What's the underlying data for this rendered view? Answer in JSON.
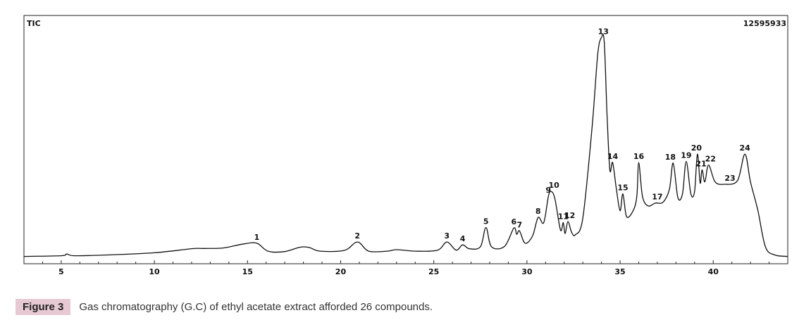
{
  "chart_data": {
    "type": "line",
    "top_left_label": "TIC",
    "top_right_label": "12595933",
    "xlim": [
      3,
      44
    ],
    "ylim": [
      0,
      100
    ],
    "x_ticks": [
      5,
      10,
      15,
      20,
      25,
      30,
      35,
      40
    ],
    "x_tick_labels": [
      "5",
      "10",
      "15",
      "20",
      "25",
      "30",
      "35",
      "40"
    ],
    "grid": false,
    "trace": [
      [
        3.0,
        1
      ],
      [
        5.0,
        1.3
      ],
      [
        5.3,
        2
      ],
      [
        5.7,
        1.3
      ],
      [
        7.5,
        1.6
      ],
      [
        10.0,
        2.5
      ],
      [
        12.0,
        4.2
      ],
      [
        12.7,
        4.3
      ],
      [
        13.7,
        4.5
      ],
      [
        14.8,
        6.2
      ],
      [
        15.5,
        6.5
      ],
      [
        16.1,
        3.2
      ],
      [
        17.0,
        3.0
      ],
      [
        17.8,
        4.8
      ],
      [
        18.3,
        4.7
      ],
      [
        18.9,
        3.2
      ],
      [
        20.2,
        3.5
      ],
      [
        20.9,
        7
      ],
      [
        21.5,
        3.2
      ],
      [
        22.5,
        3.2
      ],
      [
        23.0,
        3.8
      ],
      [
        24.0,
        3.2
      ],
      [
        25.2,
        3.6
      ],
      [
        25.7,
        7
      ],
      [
        26.2,
        3.6
      ],
      [
        26.55,
        5.8
      ],
      [
        26.9,
        4.2
      ],
      [
        27.5,
        5
      ],
      [
        27.8,
        13
      ],
      [
        28.1,
        5
      ],
      [
        28.8,
        5.2
      ],
      [
        29.3,
        12.8
      ],
      [
        29.45,
        10.2
      ],
      [
        29.6,
        11.6
      ],
      [
        29.9,
        6.5
      ],
      [
        30.3,
        9.5
      ],
      [
        30.6,
        17.2
      ],
      [
        30.9,
        15
      ],
      [
        31.15,
        26
      ],
      [
        31.3,
        28
      ],
      [
        31.5,
        25
      ],
      [
        31.8,
        12
      ],
      [
        31.95,
        15
      ],
      [
        32.05,
        10.5
      ],
      [
        32.2,
        15.5
      ],
      [
        32.4,
        11
      ],
      [
        32.6,
        10
      ],
      [
        33.0,
        17
      ],
      [
        33.5,
        55
      ],
      [
        33.8,
        85
      ],
      [
        34.0,
        92
      ],
      [
        34.15,
        90
      ],
      [
        34.3,
        60
      ],
      [
        34.45,
        37
      ],
      [
        34.6,
        40
      ],
      [
        34.8,
        29
      ],
      [
        35.0,
        20
      ],
      [
        35.15,
        27
      ],
      [
        35.35,
        17.5
      ],
      [
        35.7,
        20
      ],
      [
        35.9,
        26
      ],
      [
        36.0,
        40
      ],
      [
        36.2,
        26
      ],
      [
        36.5,
        22
      ],
      [
        36.9,
        23.2
      ],
      [
        37.3,
        23.5
      ],
      [
        37.65,
        29
      ],
      [
        37.85,
        39.8
      ],
      [
        38.1,
        25.5
      ],
      [
        38.35,
        27
      ],
      [
        38.55,
        40.5
      ],
      [
        38.8,
        27
      ],
      [
        39.0,
        28
      ],
      [
        39.15,
        43.5
      ],
      [
        39.3,
        31.5
      ],
      [
        39.4,
        37
      ],
      [
        39.55,
        32
      ],
      [
        39.75,
        39
      ],
      [
        40.1,
        32
      ],
      [
        40.6,
        31
      ],
      [
        41.3,
        32.5
      ],
      [
        41.7,
        43.5
      ],
      [
        42.0,
        32
      ],
      [
        42.4,
        20
      ],
      [
        42.8,
        5
      ],
      [
        43.3,
        1.6
      ],
      [
        44.0,
        1
      ]
    ],
    "peak_labels": [
      {
        "label": "1",
        "x": 15.5,
        "y": 6.5
      },
      {
        "label": "2",
        "x": 20.9,
        "y": 7
      },
      {
        "label": "3",
        "x": 25.7,
        "y": 7
      },
      {
        "label": "4",
        "x": 26.55,
        "y": 5.8
      },
      {
        "label": "5",
        "x": 27.8,
        "y": 13
      },
      {
        "label": "6",
        "x": 29.3,
        "y": 12.8
      },
      {
        "label": "7",
        "x": 29.6,
        "y": 11.6
      },
      {
        "label": "8",
        "x": 30.6,
        "y": 17.2
      },
      {
        "label": "9",
        "x": 31.15,
        "y": 26
      },
      {
        "label": "10",
        "x": 31.45,
        "y": 28
      },
      {
        "label": "11",
        "x": 31.95,
        "y": 15
      },
      {
        "label": "12",
        "x": 32.3,
        "y": 15.5
      },
      {
        "label": "13",
        "x": 34.1,
        "y": 92
      },
      {
        "label": "14",
        "x": 34.6,
        "y": 40
      },
      {
        "label": "15",
        "x": 35.15,
        "y": 27
      },
      {
        "label": "16",
        "x": 36.0,
        "y": 40
      },
      {
        "label": "17",
        "x": 37.0,
        "y": 23.2
      },
      {
        "label": "18",
        "x": 37.7,
        "y": 39.8
      },
      {
        "label": "19",
        "x": 38.55,
        "y": 40.5
      },
      {
        "label": "20",
        "x": 39.1,
        "y": 43.5
      },
      {
        "label": "21",
        "x": 39.35,
        "y": 37
      },
      {
        "label": "22",
        "x": 39.85,
        "y": 39
      },
      {
        "label": "23",
        "x": 40.9,
        "y": 31
      },
      {
        "label": "24",
        "x": 41.7,
        "y": 43.5
      }
    ]
  },
  "caption": {
    "tag": "Figure 3",
    "text": "Gas chromatography (G.C) of ethyl acetate extract afforded 26 compounds."
  }
}
